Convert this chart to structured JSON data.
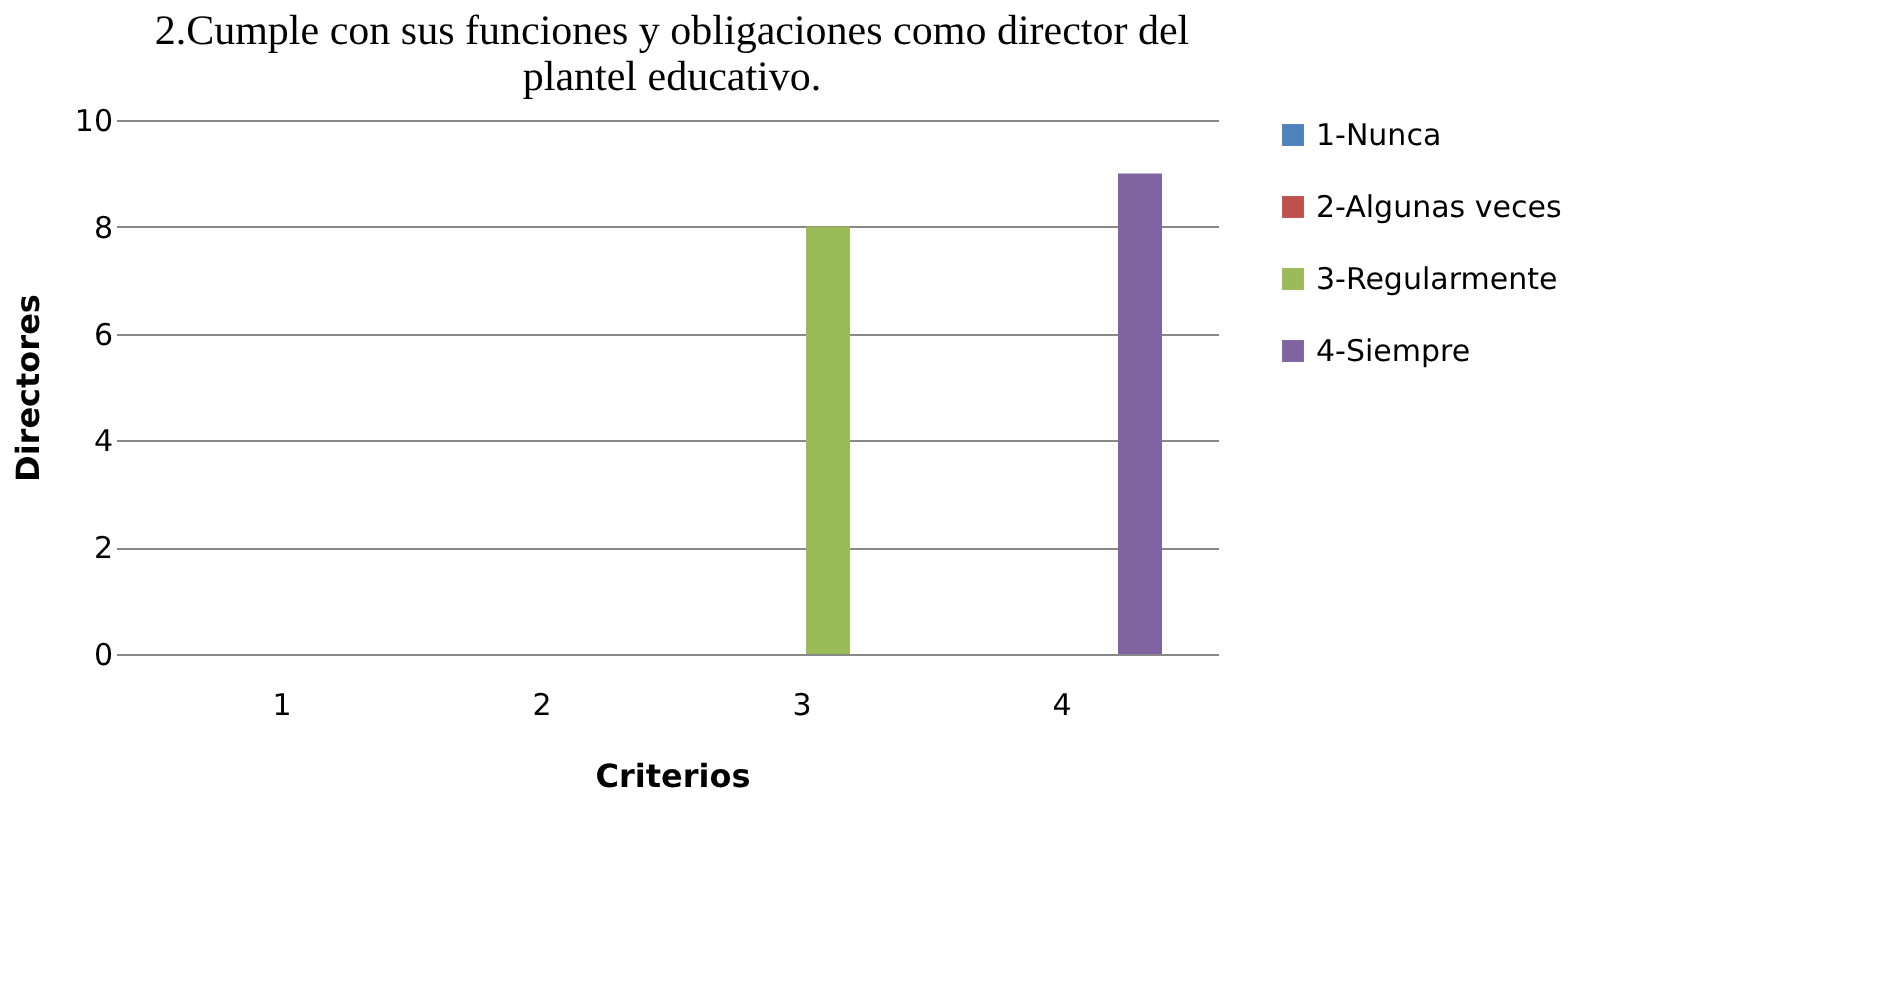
{
  "chart_data": {
    "type": "bar",
    "title": [
      "2.Cumple con sus funciones y obligaciones como director del",
      "plantel educativo."
    ],
    "xlabel": "Criterios",
    "ylabel": "Directores",
    "categories": [
      "1",
      "2",
      "3",
      "4"
    ],
    "series": [
      {
        "name": "1-Nunca",
        "color": "#4f81bd",
        "values": [
          0,
          0,
          0,
          0
        ]
      },
      {
        "name": "2-Algunas veces",
        "color": "#c0504d",
        "values": [
          0,
          0,
          0,
          0
        ]
      },
      {
        "name": "3-Regularmente",
        "color": "#9bbb59",
        "values": [
          0,
          0,
          8,
          0
        ]
      },
      {
        "name": "4-Siempre",
        "color": "#8064a2",
        "values": [
          0,
          0,
          0,
          9
        ]
      }
    ],
    "ylim": [
      0,
      10
    ],
    "yticks": [
      0,
      2,
      4,
      6,
      8,
      10
    ],
    "grid": "y",
    "legend": "right"
  }
}
